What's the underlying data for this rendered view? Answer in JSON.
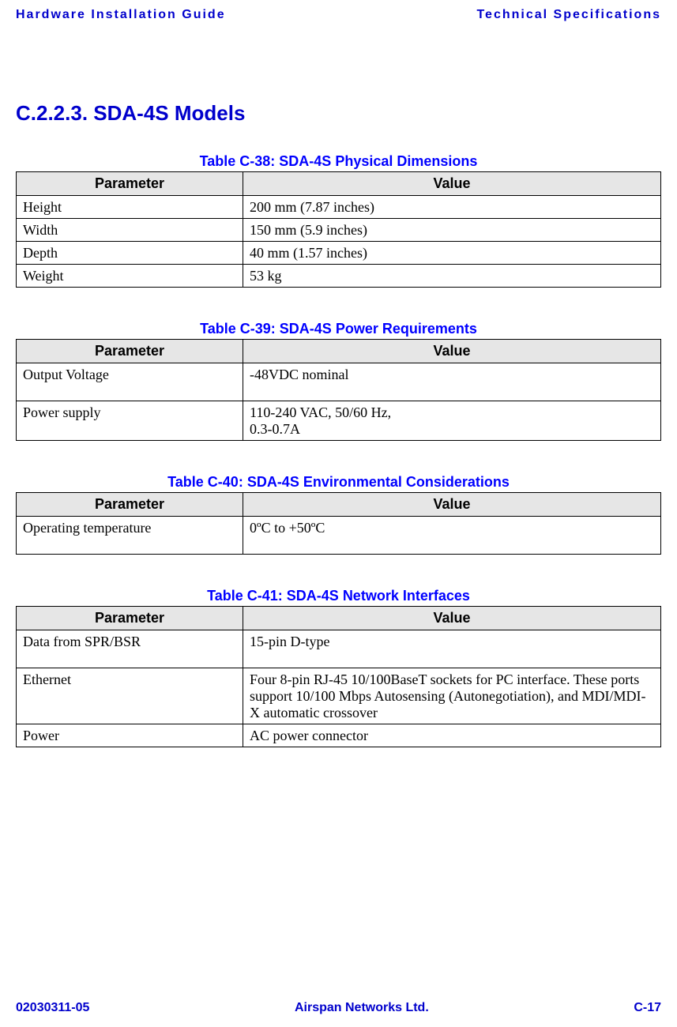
{
  "header": {
    "left": "Hardware Installation Guide",
    "right": "Technical Specifications"
  },
  "section_heading": "C.2.2.3. SDA-4S Models",
  "tables": {
    "physical": {
      "caption": "Table C-38:  SDA-4S Physical Dimensions",
      "columns": [
        "Parameter",
        "Value"
      ],
      "rows": [
        [
          "Height",
          "200 mm (7.87 inches)"
        ],
        [
          "Width",
          "150 mm (5.9 inches)"
        ],
        [
          "Depth",
          "40 mm (1.57 inches)"
        ],
        [
          "Weight",
          "53 kg"
        ]
      ]
    },
    "power": {
      "caption": "Table C-39:  SDA-4S Power Requirements",
      "columns": [
        "Parameter",
        "Value"
      ],
      "rows": [
        [
          "Output Voltage",
          "-48VDC nominal"
        ],
        [
          "Power supply",
          "110-240 VAC, 50/60 Hz,\n0.3-0.7A"
        ]
      ]
    },
    "env": {
      "caption": "Table C-40:  SDA-4S Environmental Considerations",
      "columns": [
        "Parameter",
        "Value"
      ],
      "rows": [
        [
          "Operating temperature",
          " 0ºC to +50ºC"
        ]
      ]
    },
    "network": {
      "caption": "Table C-41:  SDA-4S Network Interfaces",
      "columns": [
        "Parameter",
        "Value"
      ],
      "rows": [
        [
          "Data from SPR/BSR",
          "15-pin D-type"
        ],
        [
          "Ethernet",
          "Four 8-pin RJ-45 10/100BaseT sockets for PC interface. These ports support 10/100 Mbps Autosensing (Autonegotiation), and MDI/MDI-X automatic crossover"
        ],
        [
          "Power",
          "AC power connector"
        ]
      ]
    }
  },
  "footer": {
    "left": "02030311-05",
    "center": "Airspan Networks Ltd.",
    "right": "C-17"
  }
}
